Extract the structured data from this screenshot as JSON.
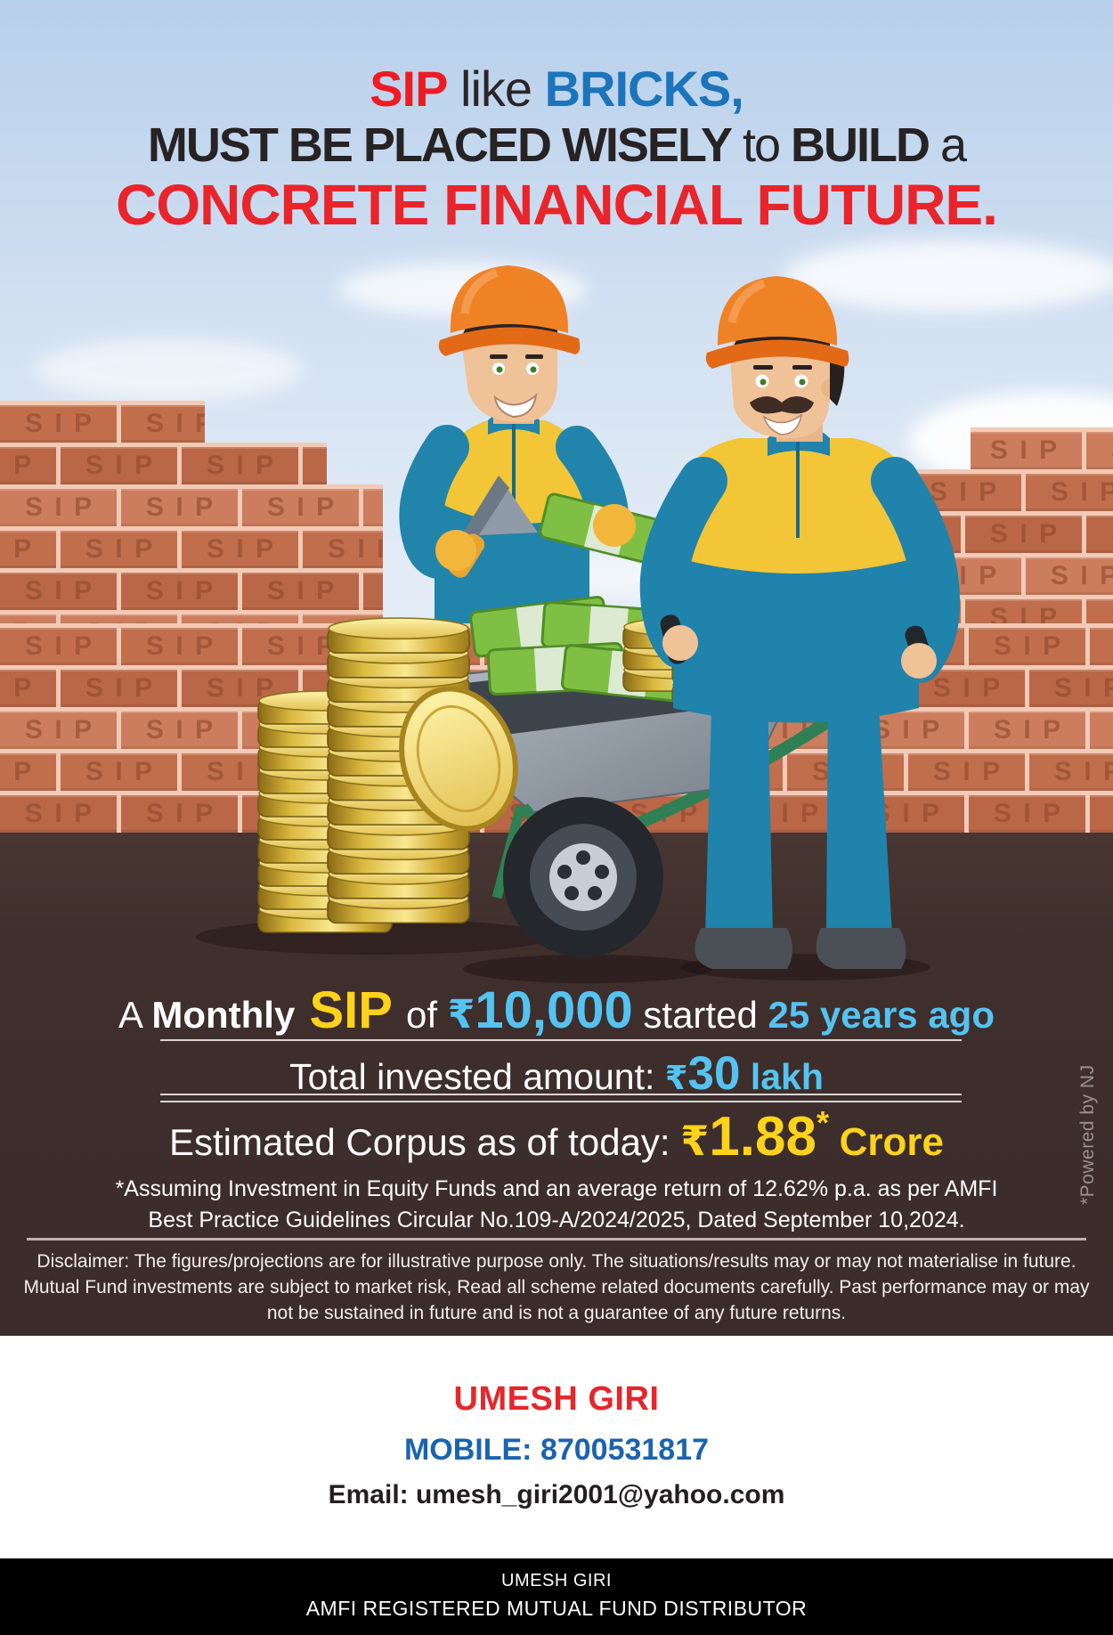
{
  "headline": {
    "l1_sip": "SIP",
    "l1_like": " like ",
    "l1_bricks": "BRICKS,",
    "l2_must": "MUST BE PLACED WISELY",
    "l2_to": " to ",
    "l2_build": "BUILD",
    "l2_a": " a",
    "l3": "CONCRETE FINANCIAL FUTURE."
  },
  "stats": {
    "row1": {
      "prefix": "A ",
      "monthly": "Monthly",
      "sip": " SIP ",
      "of": " of ",
      "rupee": "₹",
      "amount": "10,000",
      "started": " started ",
      "period": "25 years ago"
    },
    "row2": {
      "label": "Total invested amount: ",
      "rupee": "₹",
      "value": "30",
      "unit": " lakh"
    },
    "row3": {
      "label": "Estimated Corpus as of today: ",
      "rupee": "₹",
      "value": "1.88",
      "star": "*",
      "unit": " Crore"
    },
    "footnote_line1": "*Assuming Investment in Equity Funds and an average return of 12.62% p.a. as per AMFI",
    "footnote_line2": "Best Practice  Guidelines Circular No.109-A/2024/2025, Dated September 10,2024."
  },
  "disclaimer": {
    "line1": "Disclaimer: The figures/projections are for illustrative purpose only. The situations/results may or may not materialise in future.",
    "line2": "Mutual Fund investments are subject to market risk, Read all scheme related documents carefully. Past performance may or may",
    "line3": "not be sustained in future and is not a guarantee of any future returns."
  },
  "powered_by": "*Powered by NJ",
  "contact": {
    "name": "UMESH GIRI",
    "mobile_label": "MOBILE: ",
    "mobile_number": "8700531817",
    "email_label": "Email: ",
    "email": "umesh_giri2001@yahoo.com"
  },
  "footer": {
    "name": "UMESH GIRI",
    "title": "AMFI REGISTERED MUTUAL FUND DISTRIBUTOR"
  },
  "illustration": {
    "brick_label": "SIP"
  },
  "colors": {
    "headline_red": "#ec1c24",
    "headline_blue": "#1c74ba",
    "stat_light_blue": "#55c3f1",
    "stat_yellow": "#ffd21c",
    "dark_background": "#3b2c2b",
    "brick": "#c06e4c",
    "contact_red": "#e62629",
    "contact_blue": "#1b63ae"
  }
}
